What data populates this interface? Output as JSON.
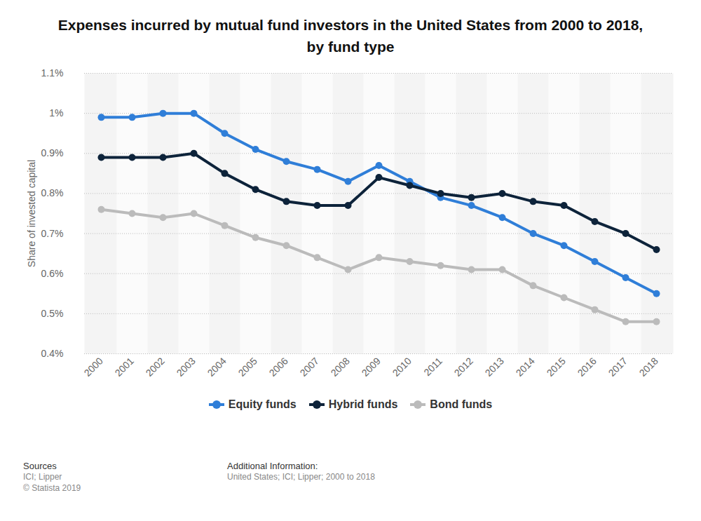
{
  "chart_data": {
    "type": "line",
    "title": "Expenses incurred by mutual fund investors in the United States from 2000 to 2018, by fund type",
    "y_label": "Share of invested capital",
    "categories": [
      "2000",
      "2001",
      "2002",
      "2003",
      "2004",
      "2005",
      "2006",
      "2007",
      "2008",
      "2009",
      "2010",
      "2011",
      "2012",
      "2013",
      "2014",
      "2015",
      "2016",
      "2017",
      "2018"
    ],
    "series": [
      {
        "name": "Equity funds",
        "color": "#2f7ed8",
        "marker": "circle",
        "line_style": "solid",
        "values": [
          0.99,
          0.99,
          1.0,
          1.0,
          0.95,
          0.91,
          0.88,
          0.86,
          0.83,
          0.87,
          0.83,
          0.79,
          0.77,
          0.74,
          0.7,
          0.67,
          0.63,
          0.59,
          0.55
        ]
      },
      {
        "name": "Hybrid funds",
        "color": "#0d233a",
        "marker": "circle",
        "line_style": "solid",
        "values": [
          0.89,
          0.89,
          0.89,
          0.9,
          0.85,
          0.81,
          0.78,
          0.77,
          0.77,
          0.84,
          0.82,
          0.8,
          0.79,
          0.8,
          0.78,
          0.77,
          0.73,
          0.7,
          0.66
        ]
      },
      {
        "name": "Bond funds",
        "color": "#bbbbbb",
        "marker": "circle",
        "line_style": "solid",
        "values": [
          0.76,
          0.75,
          0.74,
          0.75,
          0.72,
          0.69,
          0.67,
          0.64,
          0.61,
          0.64,
          0.63,
          0.62,
          0.61,
          0.61,
          0.57,
          0.54,
          0.51,
          0.48,
          0.48
        ]
      }
    ],
    "ylim": [
      0.4,
      1.1
    ],
    "yticks": [
      {
        "value": 0.4,
        "label": "0.4%"
      },
      {
        "value": 0.5,
        "label": "0.5%"
      },
      {
        "value": 0.6,
        "label": "0.6%"
      },
      {
        "value": 0.7,
        "label": "0.7%"
      },
      {
        "value": 0.8,
        "label": "0.8%"
      },
      {
        "value": 0.9,
        "label": "0.9%"
      },
      {
        "value": 1,
        "label": "1%"
      },
      {
        "value": 1.1,
        "label": "1.1%"
      }
    ],
    "grid": true,
    "legend": "bottom",
    "source_label": "Sources",
    "source": [
      "ICI; Lipper",
      "© Statista 2019"
    ],
    "additional_info_label": "Additional Information:",
    "additional_info": "United States; ICI; Lipper; 2000 to 2018"
  }
}
